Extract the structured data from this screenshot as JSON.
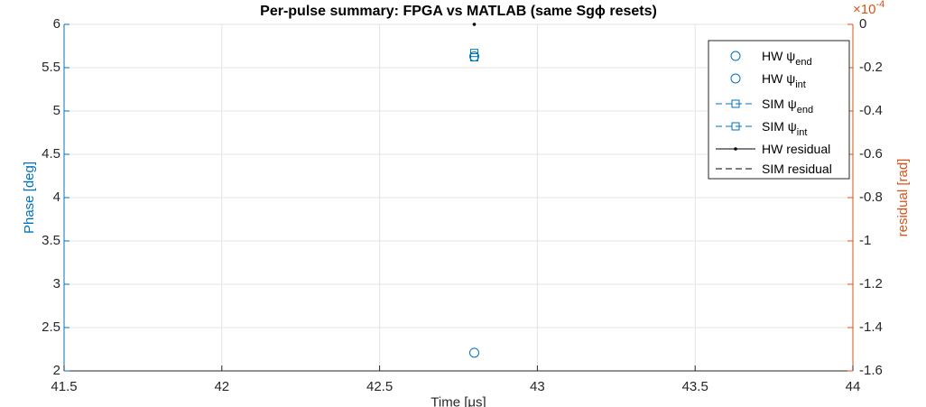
{
  "chart_data": {
    "type": "scatter",
    "title": "Per-pulse summary: FPGA vs MATLAB (same Sgϕ resets)",
    "xlabel": "Time [μs]",
    "ylabel": "Phase [deg]",
    "y2label": "residual [rad]",
    "y2_multiplier": {
      "base": "×10",
      "exponent": "-4"
    },
    "xlim": [
      41.5,
      44
    ],
    "xticks": [
      41.5,
      42,
      42.5,
      43,
      43.5,
      44
    ],
    "ylim": [
      2,
      6
    ],
    "yticks": [
      2,
      2.5,
      3,
      3.5,
      4,
      4.5,
      5,
      5.5,
      6
    ],
    "y2lim": [
      -1.6,
      0
    ],
    "y2ticks": [
      -1.6,
      -1.4,
      -1.2,
      -1,
      -0.8,
      -0.6,
      -0.4,
      -0.2,
      0
    ],
    "grid": true,
    "legend": "northeast",
    "left_color": "#0072BD",
    "right_color": "#D95319",
    "series": [
      {
        "name": "HW ψ",
        "name_sub": "end",
        "color": "#0072BD",
        "marker": "circle",
        "x": [
          42.8
        ],
        "values": [
          5.63
        ]
      },
      {
        "name": "HW ψ",
        "name_sub": "int",
        "color": "#0072BD",
        "marker": "circle",
        "x": [
          42.8
        ],
        "values": [
          2.21
        ]
      },
      {
        "name": "SIM ψ",
        "name_sub": "end",
        "color": "#0072BD",
        "marker": "square",
        "line": "dash",
        "x": [
          42.8
        ],
        "values": [
          5.67
        ]
      },
      {
        "name": "SIM ψ",
        "name_sub": "int",
        "color": "#0072BD",
        "marker": "square",
        "line": "dash",
        "x": [
          42.8
        ],
        "values": [
          5.62
        ]
      },
      {
        "name": "HW residual",
        "color": "#000000",
        "marker": "dot",
        "line": "solid",
        "axis": "y2",
        "x": [
          42.8
        ],
        "values": [
          0
        ]
      },
      {
        "name": "SIM residual",
        "color": "#000000",
        "marker": "none",
        "line": "dash",
        "axis": "y2",
        "x": [
          42.8
        ],
        "values": [
          0
        ]
      }
    ]
  }
}
